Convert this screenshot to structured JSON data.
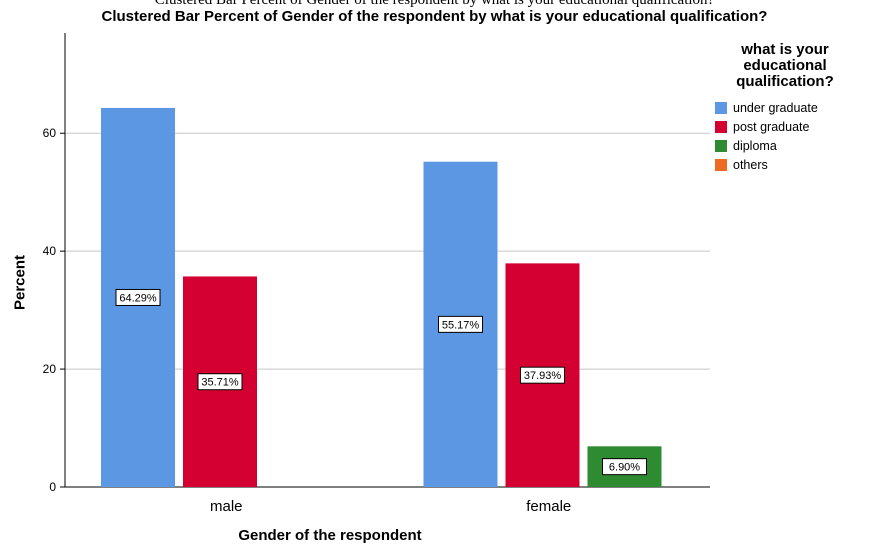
{
  "header": {
    "top_text": "Clustered Bar Percent of Gender of the respondent by what is your educational qualification?"
  },
  "chart_data": {
    "type": "bar",
    "title": "Clustered Bar Percent of Gender of the respondent by what is your educational qualification?",
    "xlabel": "Gender of the respondent",
    "ylabel": "Percent",
    "categories": [
      "male",
      "female"
    ],
    "ylim": [
      0,
      77
    ],
    "yticks": [
      0,
      20,
      40,
      60
    ],
    "grid": true,
    "legend_title": "what is your educational qualification?",
    "legend_placement": "right",
    "series": [
      {
        "name": "under graduate",
        "color": "#5b97e3",
        "values": [
          64.29,
          55.17
        ],
        "labels": [
          "64.29%",
          "55.17%"
        ]
      },
      {
        "name": "post graduate",
        "color": "#d40032",
        "values": [
          35.71,
          37.93
        ],
        "labels": [
          "35.71%",
          "37.93%"
        ]
      },
      {
        "name": "diploma",
        "color": "#2e8b32",
        "values": [
          0,
          6.9
        ],
        "labels": [
          "",
          "6.90%"
        ]
      },
      {
        "name": "others",
        "color": "#ee6b24",
        "values": [
          0,
          0
        ],
        "labels": [
          "",
          ""
        ]
      }
    ]
  }
}
